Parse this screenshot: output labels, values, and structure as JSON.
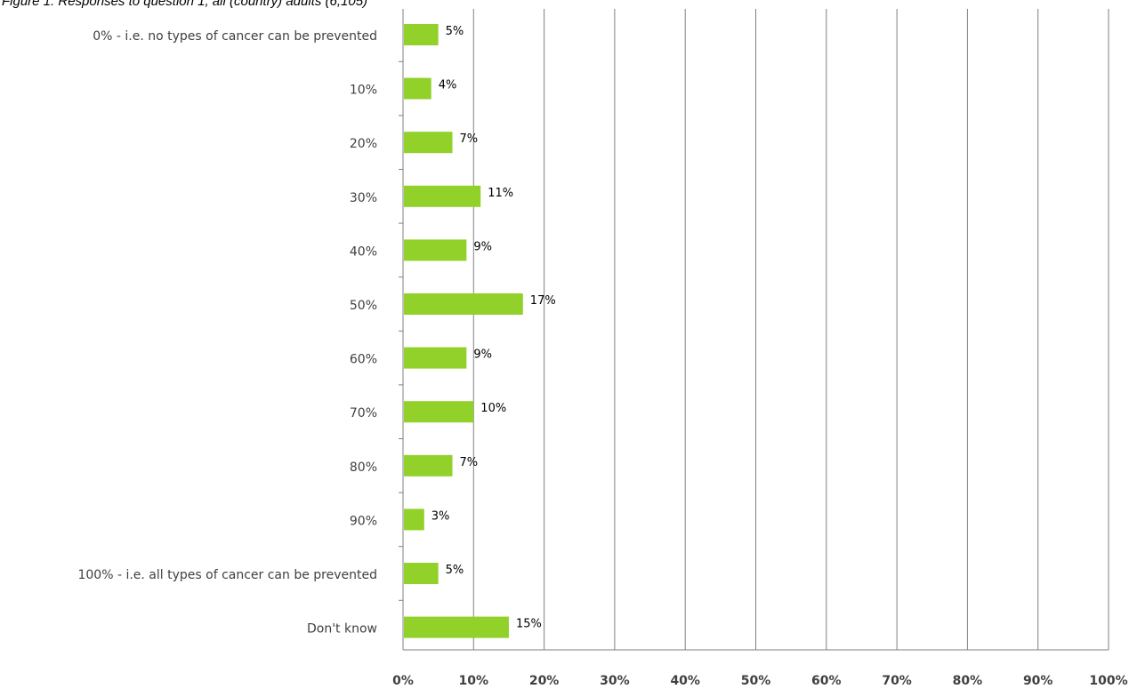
{
  "caption": "Figure 1: Responses to question 1, all (country) adults (6,105)",
  "chart_data": {
    "type": "bar",
    "orientation": "horizontal",
    "title": "Figure 1: Responses to question 1, all (country) adults (6,105)",
    "categories": [
      "0% - i.e. no types of cancer can be prevented",
      "10%",
      "20%",
      "30%",
      "40%",
      "50%",
      "60%",
      "70%",
      "80%",
      "90%",
      "100% - i.e. all types of cancer can be prevented",
      "Don't know"
    ],
    "values": [
      5,
      4,
      7,
      11,
      9,
      17,
      9,
      10,
      7,
      3,
      5,
      15
    ],
    "value_labels": [
      "5%",
      "4%",
      "7%",
      "11%",
      "9%",
      "17%",
      "9%",
      "10%",
      "7%",
      "3%",
      "5%",
      "15%"
    ],
    "xlim": [
      0,
      100
    ],
    "x_ticks": [
      0,
      10,
      20,
      30,
      40,
      50,
      60,
      70,
      80,
      90,
      100
    ],
    "x_tick_labels": [
      "0%",
      "10%",
      "20%",
      "30%",
      "40%",
      "50%",
      "60%",
      "70%",
      "80%",
      "90%",
      "100%"
    ],
    "xlabel": "",
    "ylabel": "",
    "grid": "vertical",
    "legend": "none",
    "bar_color": "#92d02a",
    "gridline_color": "#808080"
  }
}
